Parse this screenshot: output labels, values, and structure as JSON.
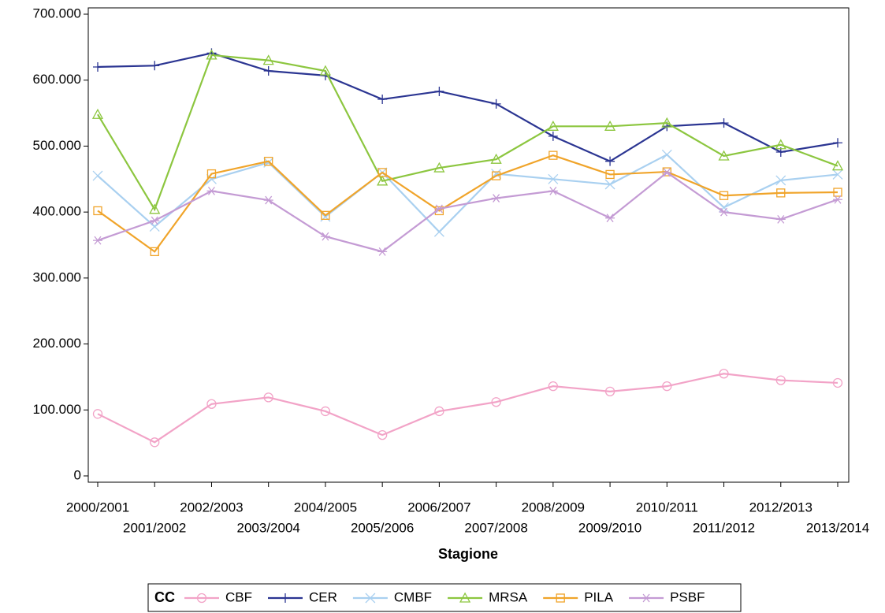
{
  "chart_data": {
    "type": "line",
    "x_label": "Stagione",
    "legend_title": "CC",
    "categories": [
      "2000/2001",
      "2001/2002",
      "2002/2003",
      "2003/2004",
      "2004/2005",
      "2005/2006",
      "2006/2007",
      "2007/2008",
      "2008/2009",
      "2009/2010",
      "2010/2011",
      "2011/2012",
      "2012/2013",
      "2013/2014"
    ],
    "ylim": [
      0,
      700000
    ],
    "yticks": [
      0,
      {
        "value": 100000,
        "label": "100.000"
      },
      {
        "value": 200000,
        "label": "200.000"
      },
      {
        "value": 300000,
        "label": "300.000"
      },
      {
        "value": 400000,
        "label": "400.000"
      },
      {
        "value": 500000,
        "label": "500.000"
      },
      {
        "value": 600000,
        "label": "600.000"
      },
      {
        "value": 700000,
        "label": "700.000"
      }
    ],
    "grid": false,
    "legend": "bottom",
    "series": [
      {
        "name": "CBF",
        "color": "#f2a3c7",
        "marker": "circle",
        "values": [
          94000,
          51000,
          109000,
          119000,
          98000,
          62000,
          98000,
          112000,
          136000,
          128000,
          136000,
          155000,
          145000,
          141000
        ]
      },
      {
        "name": "CER",
        "color": "#2b3592",
        "marker": "plus",
        "values": [
          620000,
          622000,
          641000,
          614000,
          607000,
          571000,
          583000,
          564000,
          515000,
          477000,
          530000,
          535000,
          491000,
          505000
        ]
      },
      {
        "name": "CMBF",
        "color": "#a9d0f0",
        "marker": "x",
        "values": [
          455000,
          378000,
          450000,
          475000,
          393000,
          460000,
          370000,
          458000,
          450000,
          442000,
          487000,
          407000,
          448000,
          457000
        ]
      },
      {
        "name": "MRSA",
        "color": "#8cc63f",
        "marker": "triangle",
        "values": [
          548000,
          404000,
          638000,
          630000,
          614000,
          447000,
          467000,
          480000,
          530000,
          530000,
          535000,
          485000,
          502000,
          470000
        ]
      },
      {
        "name": "PILA",
        "color": "#f0a42a",
        "marker": "square",
        "values": [
          402000,
          340000,
          458000,
          477000,
          395000,
          460000,
          402000,
          455000,
          486000,
          457000,
          461000,
          425000,
          429000,
          430000
        ]
      },
      {
        "name": "PSBF",
        "color": "#c49bd4",
        "marker": "star",
        "values": [
          357000,
          387000,
          432000,
          418000,
          363000,
          340000,
          405000,
          421000,
          432000,
          391000,
          460000,
          400000,
          389000,
          419000
        ]
      }
    ]
  }
}
